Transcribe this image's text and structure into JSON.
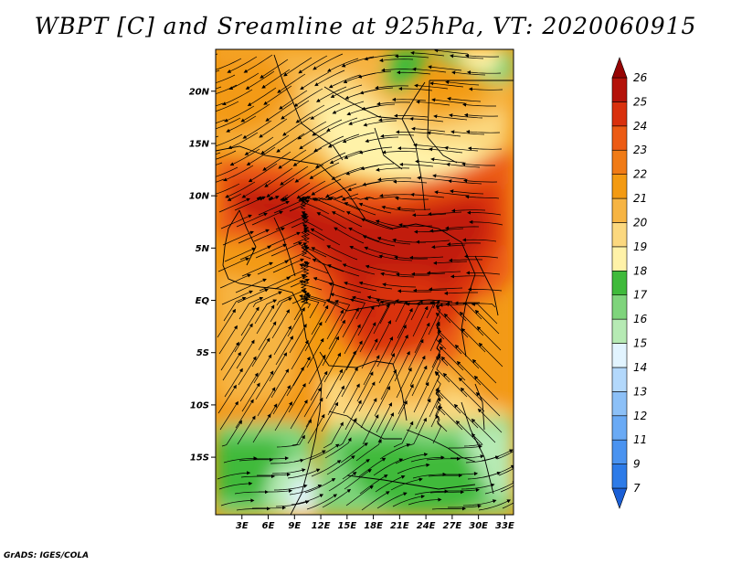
{
  "title": "WBPT [C] and Sreamline at 925hPa, VT: 2020060915",
  "credit": "GrADS: IGES/COLA",
  "map": {
    "lat_range": [
      -20.5,
      24
    ],
    "lon_range": [
      0,
      34
    ],
    "lat_ticks": [
      {
        "value": 20,
        "label": "20N"
      },
      {
        "value": 15,
        "label": "15N"
      },
      {
        "value": 10,
        "label": "10N"
      },
      {
        "value": 5,
        "label": "5N"
      },
      {
        "value": 0,
        "label": "EQ"
      },
      {
        "value": -5,
        "label": "5S"
      },
      {
        "value": -10,
        "label": "10S"
      },
      {
        "value": -15,
        "label": "15S"
      }
    ],
    "lon_ticks": [
      {
        "value": 3,
        "label": "3E"
      },
      {
        "value": 6,
        "label": "6E"
      },
      {
        "value": 9,
        "label": "9E"
      },
      {
        "value": 12,
        "label": "12E"
      },
      {
        "value": 15,
        "label": "15E"
      },
      {
        "value": 18,
        "label": "18E"
      },
      {
        "value": 21,
        "label": "21E"
      },
      {
        "value": 24,
        "label": "24E"
      },
      {
        "value": 27,
        "label": "27E"
      },
      {
        "value": 30,
        "label": "30E"
      },
      {
        "value": 33,
        "label": "33E"
      }
    ]
  },
  "colorbar": {
    "levels": [
      "7",
      "9",
      "11",
      "12",
      "13",
      "14",
      "15",
      "16",
      "17",
      "18",
      "19",
      "20",
      "21",
      "22",
      "23",
      "24",
      "25",
      "26"
    ],
    "colors": [
      "#1a5fd6",
      "#2d7be8",
      "#4a93f0",
      "#6aaaf5",
      "#8cc0f7",
      "#b3d8fb",
      "#e2f4ff",
      "#b6eab4",
      "#7fd47c",
      "#3fba3b",
      "#fff2a8",
      "#fbd87f",
      "#f6b443",
      "#f39a12",
      "#f07b16",
      "#ec5b14",
      "#d9300d",
      "#b4120a",
      "#960404"
    ]
  }
}
